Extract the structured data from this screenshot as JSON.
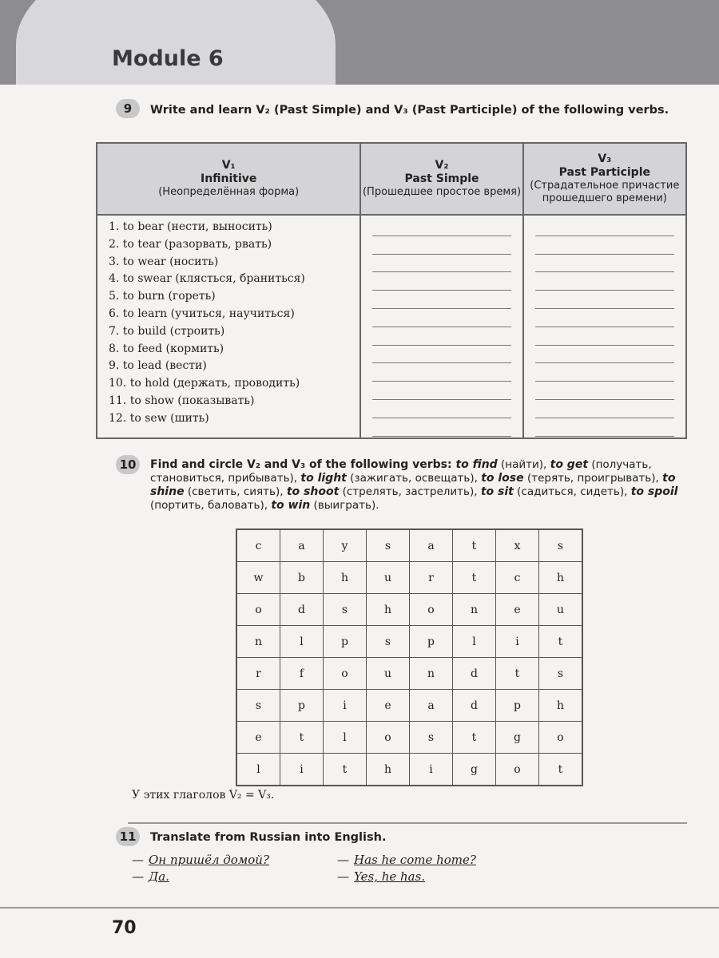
{
  "header": {
    "module": "Module 6"
  },
  "ex9": {
    "num": "9",
    "title": "Write and learn V₂ (Past Simple) and V₃ (Past Participle) of the following verbs.",
    "columns": [
      {
        "v": "V₁",
        "en": "Infinitive",
        "ru": "(Неопределённая форма)"
      },
      {
        "v": "V₂",
        "en": "Past Simple",
        "ru": "(Прошедшее простое время)"
      },
      {
        "v": "V₃",
        "en": "Past Participle",
        "ru": "(Страдательное причастие прошедшего времени)"
      }
    ],
    "verbs": [
      "1. to bear (нести, выносить)",
      "2. to tear (разорвать, рвать)",
      "3. to wear (носить)",
      "4. to swear (клясться, браниться)",
      "5. to burn (гореть)",
      "6. to learn (учиться, научиться)",
      "7. to build (строить)",
      "8. to feed (кормить)",
      "9. to lead (вести)",
      "10. to hold (держать, проводить)",
      "11. to show (показывать)",
      "12. to sew (шить)"
    ]
  },
  "ex10": {
    "num": "10",
    "title": "Find and circle V₂ and V₃ of the following verbs: ",
    "items": [
      [
        "to find",
        "(найти)"
      ],
      [
        "to get",
        "(получать, становиться, прибывать)"
      ],
      [
        "to light",
        "(зажигать, освещать)"
      ],
      [
        "to lose",
        "(терять, проигрывать)"
      ],
      [
        "to shine",
        "(светить, сиять)"
      ],
      [
        "to shoot",
        "(стрелять, застрелить)"
      ],
      [
        "to sit",
        "(садиться, сидеть)"
      ],
      [
        "to spoil",
        "(портить, баловать)"
      ],
      [
        "to win",
        "(выиграть)."
      ]
    ],
    "grid": [
      [
        "c",
        "a",
        "y",
        "s",
        "a",
        "t",
        "x",
        "s"
      ],
      [
        "w",
        "b",
        "h",
        "u",
        "r",
        "t",
        "c",
        "h"
      ],
      [
        "o",
        "d",
        "s",
        "h",
        "o",
        "n",
        "e",
        "u"
      ],
      [
        "n",
        "l",
        "p",
        "s",
        "p",
        "l",
        "i",
        "t"
      ],
      [
        "r",
        "f",
        "o",
        "u",
        "n",
        "d",
        "t",
        "s"
      ],
      [
        "s",
        "p",
        "i",
        "e",
        "a",
        "d",
        "p",
        "h"
      ],
      [
        "e",
        "t",
        "l",
        "o",
        "s",
        "t",
        "g",
        "o"
      ],
      [
        "l",
        "i",
        "t",
        "h",
        "i",
        "g",
        "o",
        "t"
      ]
    ],
    "note": "У этих глаголов V₂ = V₃."
  },
  "ex11": {
    "num": "11",
    "title": "Translate from Russian into English.",
    "dialog": [
      [
        "—",
        "Он пришёл домой?",
        "—",
        "Has he come home?"
      ],
      [
        "—",
        "Да.",
        "—",
        "Yes, he has."
      ]
    ]
  },
  "page_number": "70"
}
